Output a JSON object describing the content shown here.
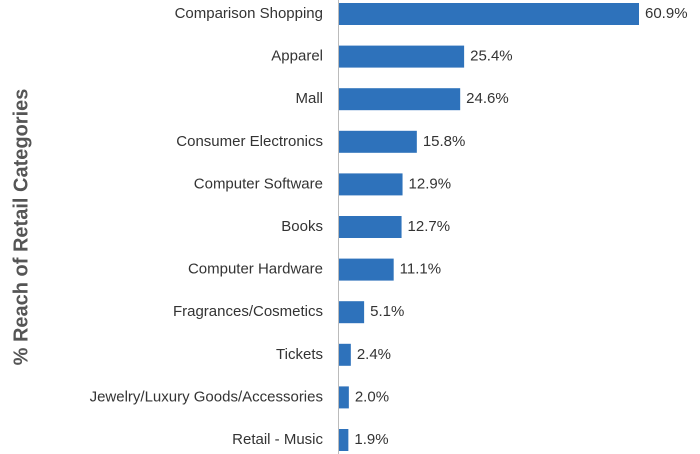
{
  "chart_data": {
    "type": "hbar",
    "y_axis_label": "% Reach of Retail Categories",
    "categories": [
      "Comparison Shopping",
      "Apparel",
      "Mall",
      "Consumer Electronics",
      "Computer Software",
      "Books",
      "Computer Hardware",
      "Fragrances/Cosmetics",
      "Tickets",
      "Jewelry/Luxury Goods/Accessories",
      "Retail - Music"
    ],
    "values": [
      60.9,
      25.4,
      24.6,
      15.8,
      12.9,
      12.7,
      11.1,
      5.1,
      2.4,
      2.0,
      1.9
    ],
    "value_labels": [
      "60.9%",
      "25.4%",
      "24.6%",
      "15.8%",
      "12.9%",
      "12.7%",
      "11.1%",
      "5.1%",
      "2.4%",
      "2.0%",
      "1.9%"
    ],
    "color": "#2e72bb"
  }
}
